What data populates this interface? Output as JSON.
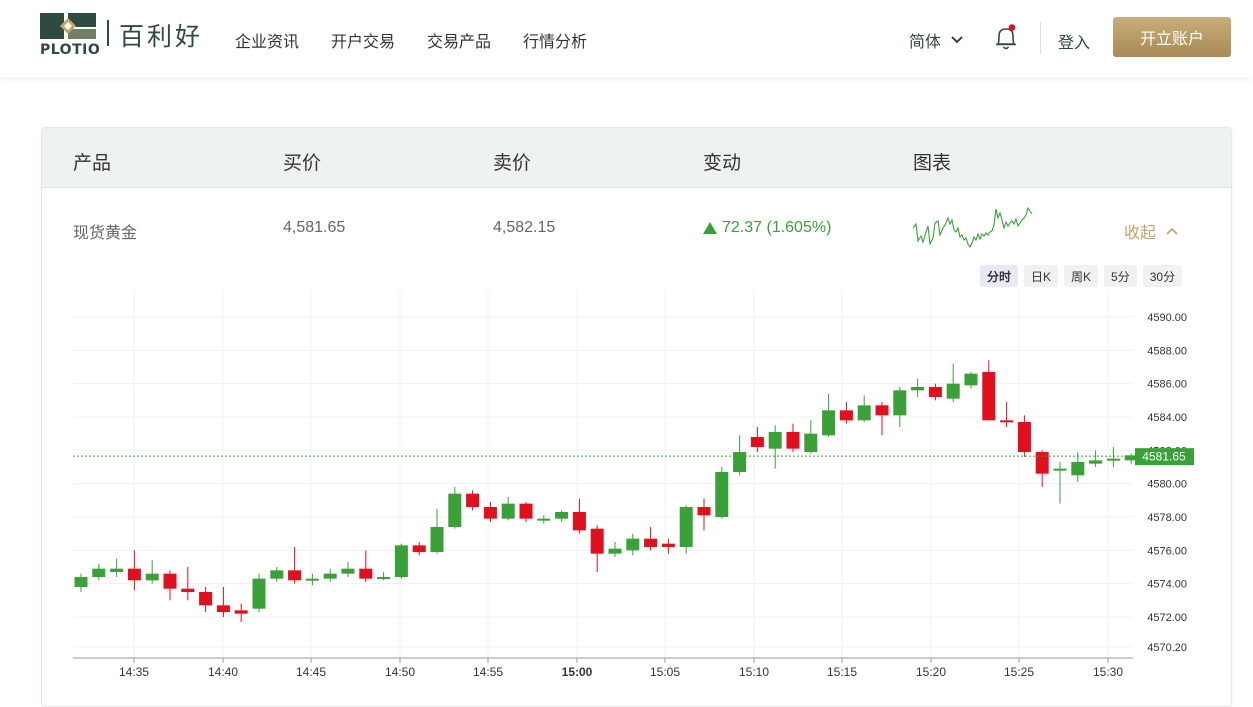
{
  "header": {
    "logo_text": "PLOTIO",
    "brand_name": "百利好",
    "nav": [
      "企业资讯",
      "开户交易",
      "交易产品",
      "行情分析"
    ],
    "language": "简体",
    "login": "登入",
    "open_account": "开立账户"
  },
  "table": {
    "headers": [
      "产品",
      "买价",
      "卖价",
      "变动",
      "图表"
    ],
    "row": {
      "product": "现货黄金",
      "bid": "4,581.65",
      "ask": "4,582.15",
      "change": "72.37 (1.605%)",
      "collapse": "收起"
    }
  },
  "chart_tabs": [
    "分时",
    "日K",
    "周K",
    "5分",
    "30分"
  ],
  "chart_data": {
    "type": "candlestick",
    "x_ticks": [
      "14:35",
      "14:40",
      "14:45",
      "14:50",
      "14:55",
      "15:00",
      "15:05",
      "15:10",
      "15:15",
      "15:20",
      "15:25",
      "15:30"
    ],
    "y_ticks": [
      "4590.00",
      "4588.00",
      "4586.00",
      "4584.00",
      "4582.00",
      "4580.00",
      "4578.00",
      "4576.00",
      "4574.00",
      "4572.00",
      "4570.20"
    ],
    "ylim": [
      4570.2,
      4590.0
    ],
    "current_price": "4581.65",
    "colors": {
      "up": "#3aa038",
      "down": "#e0101e",
      "price_line": "#3aa038"
    },
    "candles": [
      [
        4573.8,
        4574.4,
        4573.5,
        4574.6
      ],
      [
        4574.4,
        4574.9,
        4574.2,
        4575.2
      ],
      [
        4574.7,
        4574.9,
        4574.4,
        4575.5
      ],
      [
        4574.9,
        4574.2,
        4573.6,
        4576.0
      ],
      [
        4574.2,
        4574.6,
        4574.0,
        4575.4
      ],
      [
        4574.6,
        4573.7,
        4573.0,
        4574.8
      ],
      [
        4573.7,
        4573.5,
        4573.0,
        4575.0
      ],
      [
        4573.5,
        4572.7,
        4572.3,
        4573.8
      ],
      [
        4572.7,
        4572.3,
        4572.0,
        4573.8
      ],
      [
        4572.4,
        4572.2,
        4571.7,
        4572.8
      ],
      [
        4572.5,
        4574.3,
        4572.3,
        4574.6
      ],
      [
        4574.3,
        4574.8,
        4574.1,
        4575.0
      ],
      [
        4574.8,
        4574.2,
        4574.0,
        4576.2
      ],
      [
        4574.2,
        4574.3,
        4573.9,
        4574.6
      ],
      [
        4574.3,
        4574.6,
        4574.1,
        4574.9
      ],
      [
        4574.6,
        4574.9,
        4574.4,
        4575.3
      ],
      [
        4574.9,
        4574.3,
        4574.1,
        4576.0
      ],
      [
        4574.3,
        4574.4,
        4574.2,
        4574.7
      ],
      [
        4574.4,
        4576.3,
        4574.3,
        4576.4
      ],
      [
        4576.3,
        4575.9,
        4575.7,
        4576.5
      ],
      [
        4575.9,
        4577.4,
        4575.8,
        4578.5
      ],
      [
        4577.4,
        4579.4,
        4577.3,
        4579.8
      ],
      [
        4579.4,
        4578.6,
        4578.4,
        4579.6
      ],
      [
        4578.6,
        4577.9,
        4577.7,
        4578.9
      ],
      [
        4577.9,
        4578.8,
        4577.8,
        4579.2
      ],
      [
        4578.8,
        4577.9,
        4577.7,
        4578.9
      ],
      [
        4577.8,
        4577.9,
        4577.6,
        4578.1
      ],
      [
        4577.9,
        4578.3,
        4577.7,
        4578.4
      ],
      [
        4578.3,
        4577.2,
        4577.0,
        4579.1
      ],
      [
        4577.3,
        4575.8,
        4574.7,
        4577.5
      ],
      [
        4575.8,
        4576.1,
        4575.6,
        4576.5
      ],
      [
        4576.0,
        4576.7,
        4575.7,
        4577.0
      ],
      [
        4576.7,
        4576.2,
        4576.0,
        4577.4
      ],
      [
        4576.4,
        4576.2,
        4575.8,
        4576.7
      ],
      [
        4576.2,
        4578.6,
        4575.8,
        4578.7
      ],
      [
        4578.6,
        4578.1,
        4577.2,
        4579.1
      ],
      [
        4578.0,
        4580.7,
        4577.9,
        4581.0
      ],
      [
        4580.7,
        4581.9,
        4580.5,
        4582.9
      ],
      [
        4582.8,
        4582.2,
        4581.9,
        4583.4
      ],
      [
        4582.1,
        4583.1,
        4580.9,
        4583.5
      ],
      [
        4583.1,
        4582.1,
        4581.9,
        4583.6
      ],
      [
        4581.9,
        4583.0,
        4581.8,
        4583.8
      ],
      [
        4582.9,
        4584.4,
        4582.8,
        4585.4
      ],
      [
        4584.4,
        4583.8,
        4583.6,
        4584.9
      ],
      [
        4583.8,
        4584.7,
        4583.7,
        4585.3
      ],
      [
        4584.7,
        4584.1,
        4582.9,
        4584.9
      ],
      [
        4584.1,
        4585.6,
        4583.4,
        4585.8
      ],
      [
        4585.6,
        4585.8,
        4585.2,
        4586.3
      ],
      [
        4585.8,
        4585.2,
        4585.0,
        4586.0
      ],
      [
        4585.1,
        4586.0,
        4584.9,
        4587.2
      ],
      [
        4585.9,
        4586.6,
        4585.7,
        4586.7
      ],
      [
        4586.7,
        4583.8,
        4583.8,
        4587.4
      ],
      [
        4583.8,
        4583.7,
        4583.4,
        4584.9
      ],
      [
        4583.7,
        4581.9,
        4581.6,
        4584.1
      ],
      [
        4581.9,
        4580.6,
        4579.8,
        4582.0
      ],
      [
        4580.9,
        4580.9,
        4578.8,
        4581.3
      ],
      [
        4580.5,
        4581.3,
        4580.1,
        4581.9
      ],
      [
        4581.2,
        4581.4,
        4581.0,
        4582.0
      ],
      [
        4581.5,
        4581.5,
        4581.0,
        4582.2
      ],
      [
        4581.4,
        4581.7,
        4581.2,
        4581.8
      ]
    ]
  }
}
